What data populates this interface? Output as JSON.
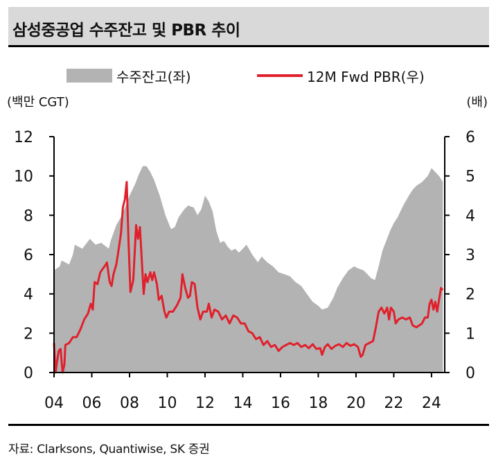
{
  "header": {
    "title": "삼성중공업 수주잔고 및 PBR 추이"
  },
  "legend": {
    "area_label": "수주잔고(좌)",
    "line_label": "12M Fwd PBR(우)"
  },
  "units": {
    "left": "(백만 CGT)",
    "right": "(배)"
  },
  "source": "자료: Clarksons, Quantiwise, SK 증권",
  "colors": {
    "area": "#b3b3b3",
    "line": "#e0202c"
  },
  "chart_data": {
    "type": "area+line",
    "title": "삼성중공업 수주잔고 및 PBR 추이",
    "x_tick_labels": [
      "04",
      "06",
      "08",
      "10",
      "12",
      "14",
      "16",
      "18",
      "20",
      "22",
      "24"
    ],
    "x_ticks": [
      2004,
      2006,
      2008,
      2010,
      2012,
      2014,
      2016,
      2018,
      2020,
      2022,
      2024
    ],
    "xlim": [
      2004,
      2024.7
    ],
    "y_left": {
      "label": "(백만 CGT)",
      "ylim": [
        0,
        12
      ],
      "ticks": [
        0,
        2,
        4,
        6,
        8,
        10,
        12
      ]
    },
    "y_right": {
      "label": "(배)",
      "ylim": [
        0,
        6
      ],
      "ticks": [
        0,
        1,
        2,
        3,
        4,
        5,
        6
      ]
    },
    "series": [
      {
        "name": "수주잔고(좌)",
        "type": "area",
        "axis": "left",
        "points": [
          [
            2004.0,
            5.2
          ],
          [
            2004.3,
            5.4
          ],
          [
            2004.4,
            5.7
          ],
          [
            2004.8,
            5.5
          ],
          [
            2005.0,
            6.0
          ],
          [
            2005.1,
            6.5
          ],
          [
            2005.5,
            6.3
          ],
          [
            2005.9,
            6.8
          ],
          [
            2006.2,
            6.5
          ],
          [
            2006.5,
            6.6
          ],
          [
            2006.9,
            6.3
          ],
          [
            2007.0,
            6.7
          ],
          [
            2007.3,
            7.5
          ],
          [
            2007.6,
            8.0
          ],
          [
            2008.0,
            9.0
          ],
          [
            2008.3,
            9.6
          ],
          [
            2008.5,
            10.1
          ],
          [
            2008.7,
            10.5
          ],
          [
            2008.9,
            10.5
          ],
          [
            2009.1,
            10.2
          ],
          [
            2009.3,
            9.8
          ],
          [
            2009.6,
            9.0
          ],
          [
            2009.9,
            8.0
          ],
          [
            2010.2,
            7.3
          ],
          [
            2010.4,
            7.4
          ],
          [
            2010.6,
            7.9
          ],
          [
            2010.9,
            8.3
          ],
          [
            2011.1,
            8.5
          ],
          [
            2011.4,
            8.4
          ],
          [
            2011.6,
            8.0
          ],
          [
            2011.8,
            8.3
          ],
          [
            2012.0,
            9.0
          ],
          [
            2012.2,
            8.7
          ],
          [
            2012.4,
            8.2
          ],
          [
            2012.6,
            7.2
          ],
          [
            2012.8,
            6.6
          ],
          [
            2013.0,
            6.7
          ],
          [
            2013.2,
            6.4
          ],
          [
            2013.4,
            6.2
          ],
          [
            2013.6,
            6.3
          ],
          [
            2013.8,
            6.1
          ],
          [
            2014.0,
            6.3
          ],
          [
            2014.2,
            6.5
          ],
          [
            2014.5,
            6.0
          ],
          [
            2014.8,
            5.6
          ],
          [
            2015.0,
            5.9
          ],
          [
            2015.3,
            5.6
          ],
          [
            2015.6,
            5.4
          ],
          [
            2015.9,
            5.1
          ],
          [
            2016.2,
            5.0
          ],
          [
            2016.5,
            4.9
          ],
          [
            2016.8,
            4.6
          ],
          [
            2017.1,
            4.4
          ],
          [
            2017.4,
            4.0
          ],
          [
            2017.7,
            3.6
          ],
          [
            2018.0,
            3.4
          ],
          [
            2018.2,
            3.2
          ],
          [
            2018.5,
            3.3
          ],
          [
            2018.8,
            3.8
          ],
          [
            2019.0,
            4.3
          ],
          [
            2019.3,
            4.8
          ],
          [
            2019.6,
            5.2
          ],
          [
            2019.9,
            5.4
          ],
          [
            2020.1,
            5.3
          ],
          [
            2020.4,
            5.2
          ],
          [
            2020.6,
            5.0
          ],
          [
            2020.8,
            4.8
          ],
          [
            2021.0,
            4.7
          ],
          [
            2021.2,
            5.4
          ],
          [
            2021.4,
            6.2
          ],
          [
            2021.6,
            6.7
          ],
          [
            2021.8,
            7.2
          ],
          [
            2022.0,
            7.6
          ],
          [
            2022.2,
            7.9
          ],
          [
            2022.5,
            8.5
          ],
          [
            2022.8,
            9.0
          ],
          [
            2023.0,
            9.3
          ],
          [
            2023.2,
            9.5
          ],
          [
            2023.5,
            9.7
          ],
          [
            2023.8,
            10.0
          ],
          [
            2024.0,
            10.4
          ],
          [
            2024.2,
            10.2
          ],
          [
            2024.4,
            10.0
          ],
          [
            2024.6,
            9.7
          ]
        ]
      },
      {
        "name": "12M Fwd PBR(우)",
        "type": "line",
        "axis": "right",
        "points": [
          [
            2004.0,
            0.75
          ],
          [
            2004.08,
            0.0
          ],
          [
            2004.15,
            0.25
          ],
          [
            2004.25,
            0.55
          ],
          [
            2004.35,
            0.6
          ],
          [
            2004.45,
            0.0
          ],
          [
            2004.55,
            0.2
          ],
          [
            2004.6,
            0.7
          ],
          [
            2004.8,
            0.75
          ],
          [
            2005.0,
            0.9
          ],
          [
            2005.2,
            0.9
          ],
          [
            2005.4,
            1.1
          ],
          [
            2005.6,
            1.35
          ],
          [
            2005.8,
            1.5
          ],
          [
            2005.95,
            1.75
          ],
          [
            2006.05,
            1.6
          ],
          [
            2006.15,
            2.3
          ],
          [
            2006.3,
            2.25
          ],
          [
            2006.45,
            2.55
          ],
          [
            2006.6,
            2.65
          ],
          [
            2006.75,
            2.75
          ],
          [
            2006.8,
            2.8
          ],
          [
            2006.95,
            2.3
          ],
          [
            2007.05,
            2.2
          ],
          [
            2007.15,
            2.5
          ],
          [
            2007.3,
            2.75
          ],
          [
            2007.4,
            3.05
          ],
          [
            2007.55,
            3.55
          ],
          [
            2007.65,
            4.2
          ],
          [
            2007.75,
            4.4
          ],
          [
            2007.85,
            4.85
          ],
          [
            2007.95,
            3.3
          ],
          [
            2008.05,
            2.05
          ],
          [
            2008.2,
            2.35
          ],
          [
            2008.35,
            3.75
          ],
          [
            2008.45,
            3.4
          ],
          [
            2008.55,
            3.7
          ],
          [
            2008.65,
            2.85
          ],
          [
            2008.75,
            2.0
          ],
          [
            2008.85,
            2.5
          ],
          [
            2008.95,
            2.3
          ],
          [
            2009.1,
            2.55
          ],
          [
            2009.2,
            2.35
          ],
          [
            2009.3,
            2.55
          ],
          [
            2009.45,
            2.25
          ],
          [
            2009.55,
            1.85
          ],
          [
            2009.7,
            1.95
          ],
          [
            2009.85,
            1.55
          ],
          [
            2009.95,
            1.4
          ],
          [
            2010.1,
            1.55
          ],
          [
            2010.3,
            1.55
          ],
          [
            2010.5,
            1.7
          ],
          [
            2010.7,
            1.9
          ],
          [
            2010.8,
            2.5
          ],
          [
            2010.95,
            2.15
          ],
          [
            2011.1,
            1.9
          ],
          [
            2011.2,
            1.95
          ],
          [
            2011.3,
            2.3
          ],
          [
            2011.45,
            2.25
          ],
          [
            2011.6,
            1.65
          ],
          [
            2011.75,
            1.35
          ],
          [
            2011.9,
            1.55
          ],
          [
            2012.1,
            1.55
          ],
          [
            2012.2,
            1.75
          ],
          [
            2012.35,
            1.4
          ],
          [
            2012.5,
            1.6
          ],
          [
            2012.7,
            1.55
          ],
          [
            2012.9,
            1.35
          ],
          [
            2013.1,
            1.45
          ],
          [
            2013.3,
            1.25
          ],
          [
            2013.5,
            1.45
          ],
          [
            2013.7,
            1.4
          ],
          [
            2013.9,
            1.25
          ],
          [
            2014.1,
            1.25
          ],
          [
            2014.3,
            1.05
          ],
          [
            2014.5,
            1.0
          ],
          [
            2014.7,
            0.85
          ],
          [
            2014.9,
            0.9
          ],
          [
            2015.1,
            0.7
          ],
          [
            2015.3,
            0.8
          ],
          [
            2015.5,
            0.65
          ],
          [
            2015.7,
            0.7
          ],
          [
            2015.9,
            0.55
          ],
          [
            2016.1,
            0.65
          ],
          [
            2016.3,
            0.7
          ],
          [
            2016.5,
            0.75
          ],
          [
            2016.7,
            0.7
          ],
          [
            2016.9,
            0.75
          ],
          [
            2017.1,
            0.65
          ],
          [
            2017.3,
            0.7
          ],
          [
            2017.5,
            0.62
          ],
          [
            2017.7,
            0.72
          ],
          [
            2017.9,
            0.6
          ],
          [
            2018.1,
            0.62
          ],
          [
            2018.2,
            0.45
          ],
          [
            2018.35,
            0.65
          ],
          [
            2018.5,
            0.72
          ],
          [
            2018.7,
            0.6
          ],
          [
            2018.9,
            0.68
          ],
          [
            2019.1,
            0.72
          ],
          [
            2019.3,
            0.65
          ],
          [
            2019.5,
            0.75
          ],
          [
            2019.7,
            0.68
          ],
          [
            2019.9,
            0.72
          ],
          [
            2020.1,
            0.65
          ],
          [
            2020.25,
            0.4
          ],
          [
            2020.35,
            0.45
          ],
          [
            2020.5,
            0.7
          ],
          [
            2020.7,
            0.75
          ],
          [
            2020.9,
            0.8
          ],
          [
            2021.05,
            1.15
          ],
          [
            2021.2,
            1.55
          ],
          [
            2021.35,
            1.65
          ],
          [
            2021.5,
            1.5
          ],
          [
            2021.65,
            1.65
          ],
          [
            2021.75,
            1.35
          ],
          [
            2021.85,
            1.65
          ],
          [
            2022.0,
            1.55
          ],
          [
            2022.1,
            1.25
          ],
          [
            2022.25,
            1.35
          ],
          [
            2022.45,
            1.4
          ],
          [
            2022.65,
            1.35
          ],
          [
            2022.85,
            1.4
          ],
          [
            2023.0,
            1.2
          ],
          [
            2023.2,
            1.15
          ],
          [
            2023.35,
            1.2
          ],
          [
            2023.5,
            1.25
          ],
          [
            2023.65,
            1.4
          ],
          [
            2023.8,
            1.4
          ],
          [
            2023.9,
            1.75
          ],
          [
            2024.0,
            1.85
          ],
          [
            2024.1,
            1.6
          ],
          [
            2024.2,
            1.8
          ],
          [
            2024.3,
            1.55
          ],
          [
            2024.4,
            1.85
          ],
          [
            2024.5,
            2.15
          ],
          [
            2024.6,
            2.1
          ]
        ]
      }
    ]
  }
}
